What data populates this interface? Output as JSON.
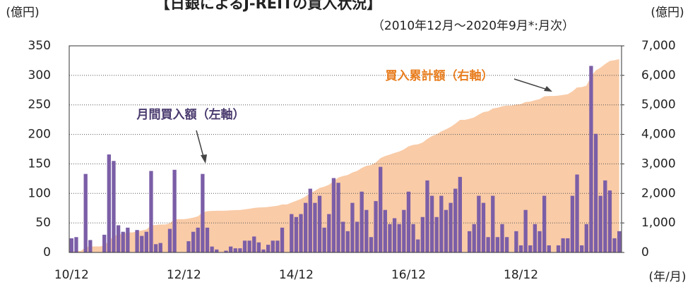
{
  "chart_data": {
    "type": "bar_area",
    "title": "【日銀によるJ-REITの買入状況】",
    "subtitle": "（2010年12月～2020年9月*:月次）",
    "y_label": "(億円)",
    "y2_label": "(億円)",
    "x_label": "(年/月)",
    "annotations": [
      "買入累計額（右軸）",
      "月間買入額（左軸）"
    ],
    "categories": [
      "10/12",
      null,
      null,
      null,
      null,
      null,
      null,
      null,
      null,
      null,
      null,
      null,
      null,
      null,
      null,
      null,
      null,
      null,
      null,
      null,
      null,
      null,
      null,
      null,
      "12/12",
      null,
      null,
      null,
      null,
      null,
      null,
      null,
      null,
      null,
      null,
      null,
      null,
      null,
      null,
      null,
      null,
      null,
      null,
      null,
      null,
      null,
      null,
      null,
      "14/12",
      null,
      null,
      null,
      null,
      null,
      null,
      null,
      null,
      null,
      null,
      null,
      null,
      null,
      null,
      null,
      null,
      null,
      null,
      null,
      null,
      null,
      null,
      null,
      "16/12",
      null,
      null,
      null,
      null,
      null,
      null,
      null,
      null,
      null,
      null,
      null,
      null,
      null,
      null,
      null,
      null,
      null,
      null,
      null,
      null,
      null,
      null,
      null,
      "18/12",
      null,
      null,
      null,
      null,
      null,
      null,
      null,
      null,
      null,
      null,
      null,
      null,
      null,
      null,
      null,
      null,
      null,
      null,
      null,
      null,
      null
    ],
    "series": [
      {
        "name": "月間買入額",
        "color": "#7b5ea7",
        "values": [
          24,
          26,
          0,
          133,
          21,
          0,
          0,
          30,
          166,
          155,
          46,
          35,
          42,
          0,
          38,
          28,
          35,
          138,
          14,
          16,
          0,
          40,
          140,
          0,
          0,
          19,
          35,
          42,
          133,
          42,
          10,
          5,
          0,
          3,
          10,
          7,
          7,
          20,
          20,
          27,
          17,
          5,
          13,
          20,
          20,
          42,
          0,
          65,
          60,
          65,
          84,
          108,
          84,
          96,
          42,
          65,
          126,
          118,
          52,
          36,
          84,
          52,
          103,
          72,
          26,
          87,
          145,
          72,
          48,
          58,
          48,
          72,
          103,
          48,
          22,
          60,
          122,
          96,
          60,
          96,
          72,
          84,
          108,
          128,
          0,
          36,
          48,
          96,
          84,
          26,
          96,
          26,
          48,
          26,
          0,
          36,
          12,
          72,
          12,
          48,
          36,
          96,
          12,
          0,
          12,
          24,
          24,
          96,
          132,
          12,
          48,
          316,
          201,
          96,
          122,
          105,
          24,
          36
        ]
      },
      {
        "name": "買入累計額",
        "color": "#f9cba7",
        "axis": "y2",
        "values": [
          24,
          50,
          50,
          183,
          204,
          204,
          204,
          234,
          400,
          555,
          601,
          636,
          678,
          678,
          716,
          744,
          779,
          917,
          931,
          947,
          947,
          987,
          1127,
          1127,
          1127,
          1146,
          1181,
          1223,
          1356,
          1398,
          1408,
          1413,
          1413,
          1416,
          1426,
          1433,
          1440,
          1460,
          1480,
          1507,
          1524,
          1529,
          1542,
          1562,
          1582,
          1624,
          1624,
          1689,
          1749,
          1814,
          1898,
          2006,
          2090,
          2186,
          2228,
          2293,
          2419,
          2537,
          2589,
          2625,
          2709,
          2761,
          2864,
          2936,
          2962,
          3049,
          3194,
          3266,
          3314,
          3372,
          3420,
          3492,
          3595,
          3643,
          3665,
          3725,
          3847,
          3943,
          4003,
          4099,
          4171,
          4255,
          4363,
          4491,
          4491,
          4527,
          4575,
          4671,
          4755,
          4781,
          4877,
          4903,
          4951,
          4977,
          4977,
          5013,
          5025,
          5097,
          5109,
          5157,
          5193,
          5289,
          5301,
          5301,
          5313,
          5337,
          5361,
          5457,
          5589,
          5601,
          5649,
          5965,
          6166,
          6262,
          6384,
          6489,
          6513,
          6549
        ]
      }
    ],
    "ylim": [
      0,
      350
    ],
    "yticks": [
      0,
      50,
      100,
      150,
      200,
      250,
      300,
      350
    ],
    "y2lim": [
      0,
      7000
    ],
    "y2ticks": [
      0,
      {
        "value": 1000,
        "label": "1,000"
      },
      {
        "value": 2000,
        "label": "2,000"
      },
      {
        "value": 3000,
        "label": "3,000"
      },
      {
        "value": 4000,
        "label": "4,000"
      },
      {
        "value": 5000,
        "label": "5,000"
      },
      {
        "value": 6000,
        "label": "6,000"
      },
      {
        "value": 7000,
        "label": "7,000"
      }
    ],
    "grid": true
  }
}
